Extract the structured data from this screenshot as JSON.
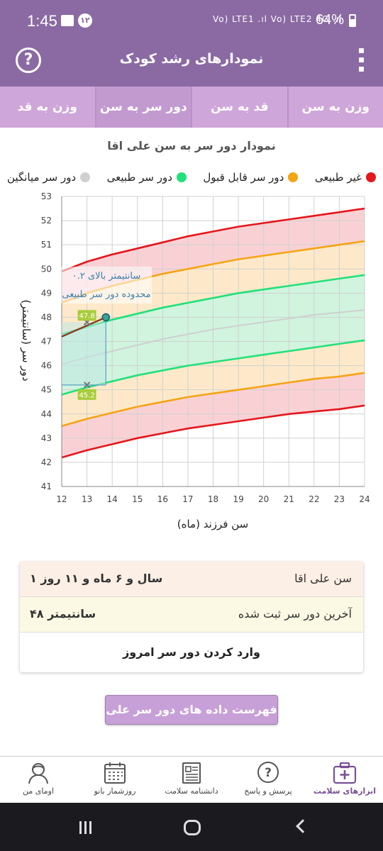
{
  "status_bar": {
    "time": "1:45",
    "badge": "۱۲",
    "network": "Vo) LTE1 .ıl Vo) LTE2 4G .ıl",
    "battery": "64%"
  },
  "app_bar": {
    "title": "نمودارهای رشد کودک",
    "help_icon": "help-circle-icon",
    "menu_icon": "more-vert-icon"
  },
  "tabs": [
    {
      "label": "وزن به سن",
      "active": false
    },
    {
      "label": "قد به سن",
      "active": false
    },
    {
      "label": "دور سر به سن",
      "active": true
    },
    {
      "label": "وزن به قد",
      "active": false
    }
  ],
  "chart_title": "نمودار دور سر به سن علی اقا",
  "legend": [
    {
      "label": "غیر طبیعی",
      "color": "#e5161c"
    },
    {
      "label": "دور سر قابل قبول",
      "color": "#f5a414"
    },
    {
      "label": "دور سر طبیعی",
      "color": "#22e07a"
    },
    {
      "label": "دور سر میانگین",
      "color": "#cfcfcf"
    }
  ],
  "chart_data": {
    "type": "line",
    "xlabel": "سن فرزند (ماه)",
    "ylabel": "دور سر (سانتیمتر)",
    "xlim": [
      12,
      24
    ],
    "ylim": [
      41,
      53
    ],
    "x_ticks": [
      "12",
      "13",
      "14",
      "15",
      "16",
      "17",
      "18",
      "19",
      "20",
      "21",
      "22",
      "23",
      "24"
    ],
    "y_ticks": [
      "41",
      "42",
      "43",
      "44",
      "45",
      "46",
      "47",
      "48",
      "49",
      "50",
      "51",
      "52",
      "53"
    ],
    "grid": true,
    "x": [
      12,
      13,
      14,
      15,
      16,
      17,
      18,
      19,
      20,
      21,
      22,
      23,
      24
    ],
    "series": [
      {
        "name": "غیر طبیعی",
        "color": "#e5161c",
        "values": [
          49.9,
          50.3,
          50.6,
          50.85,
          51.1,
          51.35,
          51.55,
          51.75,
          51.9,
          52.05,
          52.2,
          52.35,
          52.5
        ]
      },
      {
        "name": "دور سر قابل قبول",
        "color": "#f5a414",
        "values": [
          48.6,
          49.0,
          49.3,
          49.55,
          49.8,
          50.0,
          50.2,
          50.4,
          50.55,
          50.7,
          50.85,
          51.0,
          51.15
        ]
      },
      {
        "name": "دور سر طبیعی",
        "color": "#22e07a",
        "values": [
          47.3,
          47.6,
          47.9,
          48.15,
          48.4,
          48.6,
          48.8,
          49.0,
          49.15,
          49.3,
          49.45,
          49.6,
          49.75
        ]
      },
      {
        "name": "دور سر میانگین",
        "color": "#cfcfcf",
        "values": [
          46.05,
          46.35,
          46.6,
          46.85,
          47.1,
          47.3,
          47.5,
          47.65,
          47.8,
          47.95,
          48.1,
          48.2,
          48.3
        ]
      },
      {
        "name": "دور سر طبیعی",
        "color": "#22e07a",
        "values": [
          44.8,
          45.1,
          45.35,
          45.6,
          45.8,
          46.0,
          46.15,
          46.3,
          46.45,
          46.6,
          46.75,
          46.9,
          47.05
        ]
      },
      {
        "name": "دور سر قابل قبول",
        "color": "#f5a414",
        "values": [
          43.5,
          43.8,
          44.05,
          44.3,
          44.5,
          44.7,
          44.85,
          45.0,
          45.15,
          45.3,
          45.45,
          45.55,
          45.7
        ]
      },
      {
        "name": "غیر طبیعی",
        "color": "#e5161c",
        "values": [
          42.2,
          42.5,
          42.75,
          43.0,
          43.2,
          43.4,
          43.55,
          43.7,
          43.85,
          44.0,
          44.1,
          44.2,
          44.35
        ]
      }
    ],
    "child_points": [
      {
        "x": 13.75,
        "y": 48.0
      }
    ],
    "range_markers": [
      {
        "x": 13,
        "y": 47.8,
        "label": "47.8"
      },
      {
        "x": 13,
        "y": 45.2,
        "label": "45.2"
      }
    ],
    "annotation": "۰.۲ سانتیمتر بالای محدوده دور سر طبیعی"
  },
  "info": {
    "age_label": "سن علی اقا",
    "age_value": "۱ سال و ۶ ماه و ۱۱ روز",
    "last_label": "آخرین دور سر ثبت شده",
    "last_value": "۴۸ سانتیمتر",
    "enter_label": "وارد کردن دور سر امروز"
  },
  "list_button": "فهرست داده های دور سر علی اقا",
  "bottom_nav": [
    {
      "label": "ابزارهای سلامت",
      "icon": "health-kit-icon",
      "active": true
    },
    {
      "label": "پرسش و پاسخ",
      "icon": "question-bubble-icon",
      "active": false
    },
    {
      "label": "دانشنامه سلامت",
      "icon": "encyclopedia-icon",
      "active": false
    },
    {
      "label": "روزشمار بانو",
      "icon": "calendar-icon",
      "active": false
    },
    {
      "label": "اومای من",
      "icon": "profile-icon",
      "active": false
    }
  ]
}
